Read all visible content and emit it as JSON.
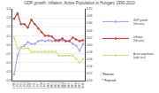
{
  "chart_data": {
    "type": "line",
    "title": "GDP growth, Inflation, Active Population in Hungary 1990-2010",
    "x": [
      1990,
      1991,
      1992,
      1993,
      1994,
      1995,
      1996,
      1997,
      1998,
      1999,
      2000,
      2001,
      2002,
      2003,
      2004,
      2005,
      2006,
      2007,
      2008,
      2009,
      2010
    ],
    "xlim": [
      1989.5,
      2010.5
    ],
    "xticks": [
      1990,
      1991,
      1992,
      1993,
      1994,
      1995,
      1996,
      1997,
      1998,
      1999,
      2000,
      2001,
      2002,
      2003,
      2004,
      2005,
      2006,
      2007,
      2008,
      2009,
      2010
    ],
    "ylim": [
      -0.4,
      0.4
    ],
    "yticks": [
      -0.4,
      -0.3,
      -0.2,
      -0.1,
      {
        "value": 0.0,
        "label": "0.0"
      },
      0.1,
      0.2,
      0.3,
      0.4
    ],
    "y2lim": [
      0.5,
      0.7
    ],
    "y2ticks": [
      {
        "value": 0.5,
        "label": "0.50"
      },
      0.52,
      0.54,
      0.56,
      0.58,
      {
        "value": 0.6,
        "label": "0.60"
      },
      0.62,
      0.64,
      0.66,
      0.68,
      {
        "value": 0.7,
        "label": "0.70"
      }
    ],
    "grid": true,
    "legend": "right",
    "marker": "circle",
    "series": [
      {
        "name": "GDP growth\n(left axis)",
        "color": "#aaaaee",
        "values": [
          -0.33,
          -0.12,
          -0.03,
          -0.01,
          0.03,
          0.01,
          0.01,
          0.04,
          0.05,
          0.04,
          0.05,
          0.04,
          0.04,
          0.04,
          0.05,
          0.04,
          0.04,
          0.01,
          -0.01,
          -0.07,
          0.01
        ]
      },
      {
        "name": "Inflation\n(left axis)",
        "color": "#cc4444",
        "values": [
          0.29,
          0.35,
          0.23,
          0.23,
          0.19,
          0.28,
          0.23,
          0.18,
          0.14,
          0.1,
          0.1,
          0.09,
          0.05,
          0.05,
          0.07,
          0.04,
          0.04,
          0.08,
          0.06,
          0.04,
          0.05
        ]
      },
      {
        "name": "Active population\n(right axis)",
        "color": "#dddd88",
        "axis": "y2",
        "values": [
          0.62,
          0.59,
          0.59,
          0.59,
          0.59,
          0.58,
          0.58,
          0.58,
          0.58,
          0.58,
          0.58,
          0.58,
          0.58,
          0.57,
          0.57,
          0.57,
          0.57,
          0.57,
          0.56,
          0.55,
          0.56
        ]
      }
    ],
    "annotations": [
      "* Forecast",
      "** Projected"
    ]
  }
}
